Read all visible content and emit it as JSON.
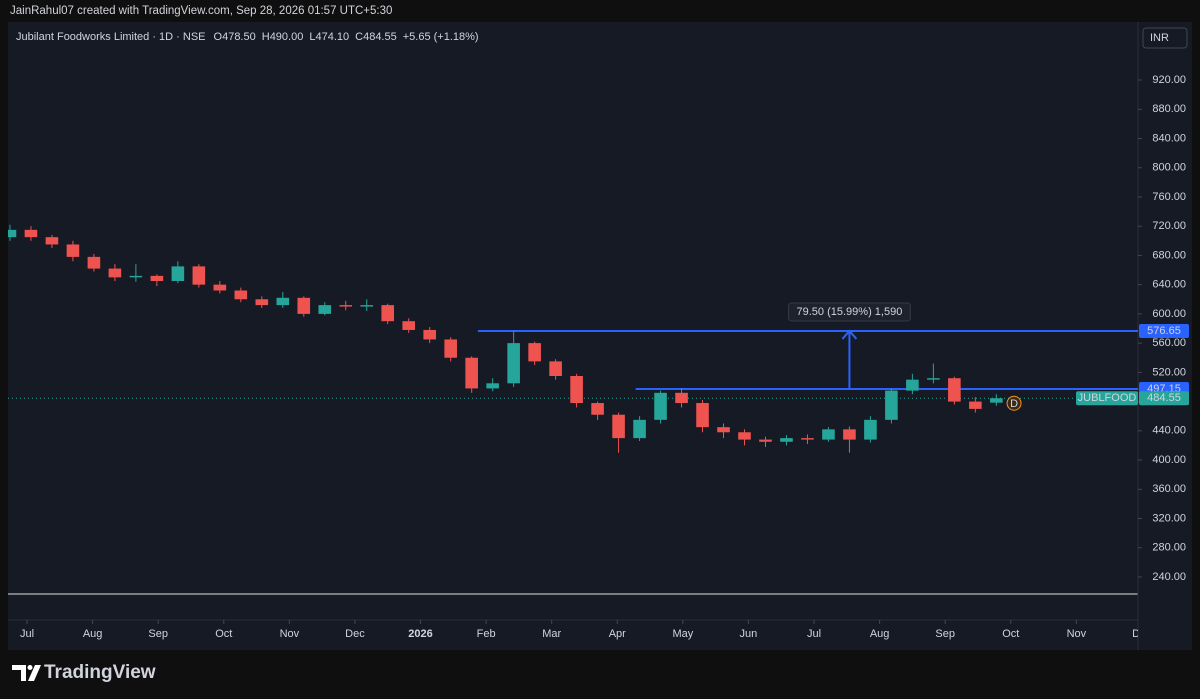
{
  "header": {
    "attribution": "JainRahul07 created with TradingView.com, Sep 28, 2026 01:57 UTC+5:30"
  },
  "chart_data": {
    "type": "candlestick",
    "title": "Jubilant Foodworks Limited · 1D · NSE",
    "ohlc_legend": [
      {
        "key": "O",
        "value": "478.50"
      },
      {
        "key": "H",
        "value": "490.00"
      },
      {
        "key": "L",
        "value": "474.10"
      },
      {
        "key": "C",
        "value": "484.55"
      }
    ],
    "change": "+5.65 (+1.18%)",
    "currency": "INR",
    "symbol": "JUBLFOOD",
    "up_color": "#26a69a",
    "down_color": "#ef5350",
    "x": [
      -0.26,
      0.06,
      0.38,
      0.7,
      1.02,
      1.34,
      1.66,
      1.98,
      2.3,
      2.62,
      2.94,
      3.26,
      3.58,
      3.9,
      4.22,
      4.54,
      4.86,
      5.18,
      5.5,
      5.82,
      6.14,
      6.46,
      6.78,
      7.1,
      7.42,
      7.74,
      8.06,
      8.38,
      8.7,
      9.02,
      9.34,
      9.66,
      9.98,
      10.3,
      10.62,
      10.94,
      11.26,
      11.58,
      11.9,
      12.22,
      12.54,
      12.86,
      13.18,
      13.5,
      13.82,
      14.14,
      14.46,
      14.78
    ],
    "open": [
      705,
      715,
      705,
      695,
      678,
      662,
      650,
      652,
      645,
      665,
      640,
      632,
      620,
      612,
      622,
      600,
      612,
      610,
      612,
      590,
      578,
      565,
      540,
      498,
      505,
      560,
      535,
      515,
      478,
      462,
      430,
      455,
      492,
      478,
      445,
      438,
      428,
      425,
      430,
      428,
      442,
      428,
      455,
      495,
      510,
      512,
      480,
      478.5
    ],
    "high": [
      722,
      720,
      708,
      700,
      682,
      668,
      668,
      654,
      672,
      668,
      645,
      636,
      624,
      630,
      624,
      616,
      618,
      620,
      614,
      594,
      582,
      568,
      542,
      512,
      577,
      562,
      538,
      518,
      480,
      465,
      460,
      495,
      498,
      482,
      450,
      442,
      432,
      434,
      435,
      445,
      446,
      460,
      498,
      518,
      532,
      514,
      486,
      490
    ],
    "low": [
      700,
      700,
      690,
      672,
      658,
      645,
      644,
      638,
      642,
      636,
      628,
      616,
      608,
      608,
      596,
      598,
      605,
      604,
      586,
      574,
      560,
      535,
      492,
      494,
      500,
      530,
      510,
      472,
      455,
      410,
      426,
      450,
      472,
      438,
      430,
      420,
      418,
      420,
      422,
      425,
      410,
      424,
      450,
      490,
      505,
      476,
      465,
      474.1
    ],
    "close": [
      715,
      705,
      695,
      678,
      662,
      650,
      652,
      645,
      665,
      640,
      632,
      620,
      612,
      622,
      600,
      612,
      610,
      612,
      590,
      578,
      565,
      540,
      498,
      505,
      560,
      535,
      515,
      478,
      462,
      430,
      455,
      492,
      478,
      445,
      438,
      428,
      425,
      430,
      428,
      442,
      428,
      455,
      495,
      510,
      512,
      480,
      470,
      484.55
    ],
    "last_price": {
      "value": 484.55,
      "label": "484.55"
    },
    "levels": [
      {
        "value": 576.65,
        "label": "576.65",
        "x_start": 6.875,
        "color": "#2962ff"
      },
      {
        "value": 497.15,
        "label": "497.15",
        "x_start": 9.28,
        "color": "#2962ff"
      }
    ],
    "measure": {
      "x": 12.54,
      "from": 497.15,
      "to": 576.65,
      "label": "79.50 (15.99%) 1,590"
    },
    "event_marker": {
      "x": 15.05,
      "label": "D"
    },
    "xlim": [
      -0.29,
      16.94
    ],
    "ylim": [
      216.7,
      999.4
    ],
    "xticks": [
      {
        "value": 0,
        "label": "Jul"
      },
      {
        "value": 1,
        "label": "Aug"
      },
      {
        "value": 2,
        "label": "Sep"
      },
      {
        "value": 3,
        "label": "Oct"
      },
      {
        "value": 4,
        "label": "Nov"
      },
      {
        "value": 5,
        "label": "Dec"
      },
      {
        "value": 6,
        "label": "2026"
      },
      {
        "value": 7,
        "label": "Feb"
      },
      {
        "value": 8,
        "label": "Mar"
      },
      {
        "value": 9,
        "label": "Apr"
      },
      {
        "value": 10,
        "label": "May"
      },
      {
        "value": 11,
        "label": "Jun"
      },
      {
        "value": 12,
        "label": "Jul"
      },
      {
        "value": 13,
        "label": "Aug"
      },
      {
        "value": 14,
        "label": "Sep"
      },
      {
        "value": 15,
        "label": "Oct"
      },
      {
        "value": 16,
        "label": "Nov"
      },
      {
        "value": 17,
        "label": "Dec"
      }
    ],
    "yticks": [
      {
        "value": 240,
        "label": "240.00"
      },
      {
        "value": 280,
        "label": "280.00"
      },
      {
        "value": 320,
        "label": "320.00"
      },
      {
        "value": 360,
        "label": "360.00"
      },
      {
        "value": 400,
        "label": "400.00"
      },
      {
        "value": 440,
        "label": "440.00"
      },
      {
        "value": 480,
        "label": "480.00"
      },
      {
        "value": 520,
        "label": "520.00"
      },
      {
        "value": 560,
        "label": "560.00"
      },
      {
        "value": 600,
        "label": "600.00"
      },
      {
        "value": 640,
        "label": "640.00"
      },
      {
        "value": 680,
        "label": "680.00"
      },
      {
        "value": 720,
        "label": "720.00"
      },
      {
        "value": 760,
        "label": "760.00"
      },
      {
        "value": 800,
        "label": "800.00"
      },
      {
        "value": 840,
        "label": "840.00"
      },
      {
        "value": 880,
        "label": "880.00"
      },
      {
        "value": 920,
        "label": "920.00"
      }
    ]
  },
  "footer": {
    "brand": "TradingView"
  }
}
